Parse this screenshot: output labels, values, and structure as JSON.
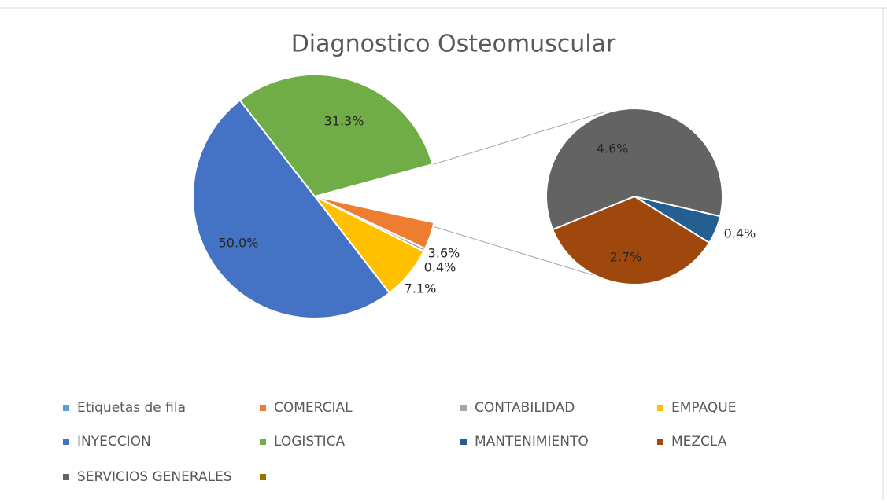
{
  "chart_data": {
    "type": "pie_of_pie",
    "title": "Diagnostico Osteomuscular",
    "categories": [
      "Etiquetas de fila",
      "COMERCIAL",
      "CONTABILIDAD",
      "EMPAQUE",
      "INYECCION",
      "LOGISTICA",
      "MANTENIMIENTO",
      "MEZCLA",
      "SERVICIOS GENERALES",
      null
    ],
    "values": [
      null,
      3.6,
      0.4,
      7.1,
      50.0,
      31.3,
      0.4,
      2.7,
      4.6,
      null
    ],
    "value_labels": [
      null,
      "3.6%",
      "0.4%",
      "7.1%",
      "50.0%",
      "31.3%",
      "0.4%",
      "2.7%",
      "4.6%",
      null
    ],
    "colors": [
      "#5b9bd5",
      "#ed7d31",
      "#a5a5a5",
      "#ffc000",
      "#4472c4",
      "#70ad47",
      "#255e91",
      "#9e480e",
      "#636363",
      "#997300"
    ],
    "secondary": [
      false,
      false,
      false,
      false,
      false,
      false,
      true,
      true,
      true,
      false
    ],
    "legend": "bottom"
  }
}
